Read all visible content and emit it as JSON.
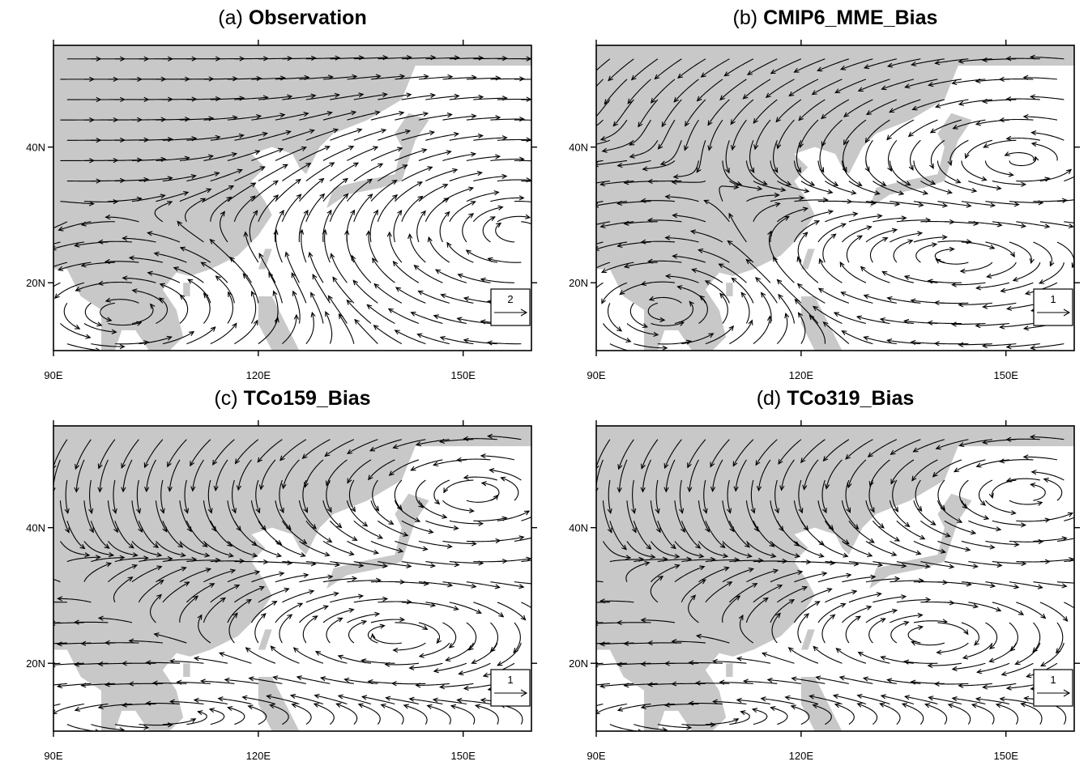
{
  "panels": [
    {
      "label": "(a)",
      "title": "Observation",
      "reference_vector": 2
    },
    {
      "label": "(b)",
      "title": "CMIP6_MME_Bias",
      "reference_vector": 1
    },
    {
      "label": "(c)",
      "title": "TCo159_Bias",
      "reference_vector": 1
    },
    {
      "label": "(d)",
      "title": "TCo319_Bias",
      "reference_vector": 1
    }
  ],
  "x_axis": {
    "xlim": [
      90,
      160
    ],
    "xticks": [
      {
        "value": 90,
        "label": "90E"
      },
      {
        "value": 120,
        "label": "120E"
      },
      {
        "value": 150,
        "label": "150E"
      }
    ]
  },
  "y_axis": {
    "ylim": [
      10,
      55
    ],
    "yticks": [
      {
        "value": 20,
        "label": "20N"
      },
      {
        "value": 40,
        "label": "40N"
      }
    ]
  }
}
